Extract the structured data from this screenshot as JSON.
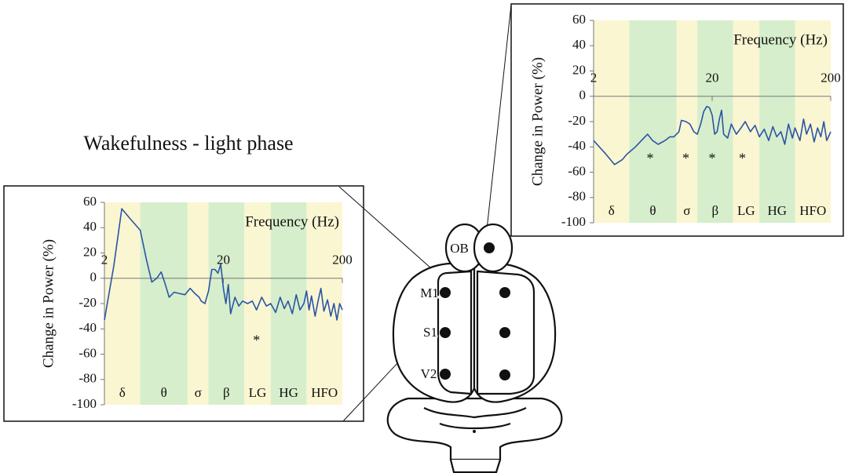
{
  "title": "Wakefulness - light phase",
  "chart_data": [
    {
      "type": "line",
      "xlabel": "Frequency (Hz)",
      "ylabel": "Change in Power (%)",
      "xscale": "log",
      "xlim": [
        2,
        200
      ],
      "xticks": [
        2,
        20,
        200
      ],
      "ylim": [
        -100,
        60
      ],
      "yticks": [
        -100,
        -80,
        -60,
        -40,
        -20,
        0,
        20,
        40,
        60
      ],
      "bands": [
        {
          "label": "δ",
          "range": [
            2,
            4
          ],
          "color": "#faf6d2"
        },
        {
          "label": "θ",
          "range": [
            4,
            10
          ],
          "color": "#d6eecb"
        },
        {
          "label": "σ",
          "range": [
            10,
            15
          ],
          "color": "#faf6d2"
        },
        {
          "label": "β",
          "range": [
            15,
            30
          ],
          "color": "#d6eecb"
        },
        {
          "label": "LG",
          "range": [
            30,
            50
          ],
          "color": "#faf6d2"
        },
        {
          "label": "HG",
          "range": [
            50,
            100
          ],
          "color": "#d6eecb"
        },
        {
          "label": "HFO",
          "range": [
            100,
            200
          ],
          "color": "#faf6d2"
        }
      ],
      "x": [
        2,
        2.4,
        2.8,
        3.3,
        4,
        4.5,
        5,
        5.5,
        6,
        6.5,
        7,
        7.7,
        8.5,
        9.5,
        10.5,
        11.5,
        12.5,
        13,
        14,
        15,
        16,
        17,
        18,
        19,
        20,
        21,
        22,
        23,
        25,
        27,
        29,
        32,
        35,
        38,
        42,
        46,
        50,
        55,
        60,
        65,
        70,
        76,
        82,
        88,
        95,
        100,
        105,
        110,
        118,
        125,
        132,
        140,
        150,
        160,
        170,
        180,
        190,
        200
      ],
      "series": [
        {
          "color": "#2a54a6",
          "values": [
            -33,
            10,
            55,
            47,
            38,
            15,
            -3,
            0,
            5,
            -5,
            -15,
            -11,
            -12,
            -13,
            -8,
            -12,
            -15,
            -18,
            -20,
            -10,
            7,
            7,
            4,
            11,
            -8,
            -20,
            -5,
            -28,
            -15,
            -22,
            -18,
            -20,
            -18,
            -25,
            -15,
            -22,
            -20,
            -27,
            -15,
            -24,
            -18,
            -28,
            -13,
            -25,
            -20,
            -10,
            -25,
            -14,
            -30,
            -18,
            -8,
            -26,
            -17,
            -30,
            -20,
            -33,
            -20,
            -25
          ]
        }
      ],
      "annotations": [
        {
          "text": "*",
          "x": 38,
          "y": -50
        }
      ]
    },
    {
      "type": "line",
      "xlabel": "Frequency (Hz)",
      "ylabel": "Change in Power (%)",
      "xscale": "log",
      "xlim": [
        2,
        200
      ],
      "xticks": [
        2,
        20,
        200
      ],
      "ylim": [
        -100,
        60
      ],
      "yticks": [
        -100,
        -80,
        -60,
        -40,
        -20,
        0,
        20,
        40,
        60
      ],
      "bands": [
        {
          "label": "δ",
          "range": [
            2,
            4
          ],
          "color": "#faf6d2"
        },
        {
          "label": "θ",
          "range": [
            4,
            10
          ],
          "color": "#d6eecb"
        },
        {
          "label": "σ",
          "range": [
            10,
            15
          ],
          "color": "#faf6d2"
        },
        {
          "label": "β",
          "range": [
            15,
            30
          ],
          "color": "#d6eecb"
        },
        {
          "label": "LG",
          "range": [
            30,
            50
          ],
          "color": "#faf6d2"
        },
        {
          "label": "HG",
          "range": [
            50,
            100
          ],
          "color": "#d6eecb"
        },
        {
          "label": "HFO",
          "range": [
            100,
            200
          ],
          "color": "#faf6d2"
        }
      ],
      "x": [
        2,
        2.5,
        3,
        3.5,
        3.8,
        4.5,
        5.7,
        6.3,
        7,
        8,
        8.8,
        9.5,
        10.5,
        11,
        12,
        13,
        14,
        15,
        16,
        17,
        18,
        19,
        20,
        21,
        22,
        23,
        24,
        25,
        27,
        29,
        32,
        35,
        38,
        42,
        46,
        50,
        55,
        60,
        65,
        70,
        76,
        82,
        88,
        95,
        100,
        110,
        118,
        125,
        135,
        145,
        155,
        165,
        175,
        185,
        200
      ],
      "series": [
        {
          "color": "#2a54a6",
          "values": [
            -35,
            -45,
            -54,
            -50,
            -46,
            -40,
            -30,
            -35,
            -38,
            -35,
            -32,
            -32,
            -28,
            -19,
            -20,
            -22,
            -28,
            -30,
            -22,
            -12,
            -8,
            -9,
            -15,
            -30,
            -28,
            -18,
            -11,
            -30,
            -33,
            -22,
            -30,
            -25,
            -20,
            -28,
            -23,
            -32,
            -26,
            -35,
            -24,
            -32,
            -28,
            -38,
            -22,
            -33,
            -25,
            -35,
            -18,
            -30,
            -22,
            -36,
            -25,
            -32,
            -20,
            -35,
            -28
          ]
        }
      ],
      "annotations": [
        {
          "text": "*",
          "x": 6,
          "y": -50
        },
        {
          "text": "*",
          "x": 12,
          "y": -50
        },
        {
          "text": "*",
          "x": 20,
          "y": -50
        },
        {
          "text": "*",
          "x": 36,
          "y": -50
        }
      ]
    }
  ],
  "diagram": {
    "labels": [
      "OB",
      "M1",
      "S1",
      "V2"
    ]
  }
}
